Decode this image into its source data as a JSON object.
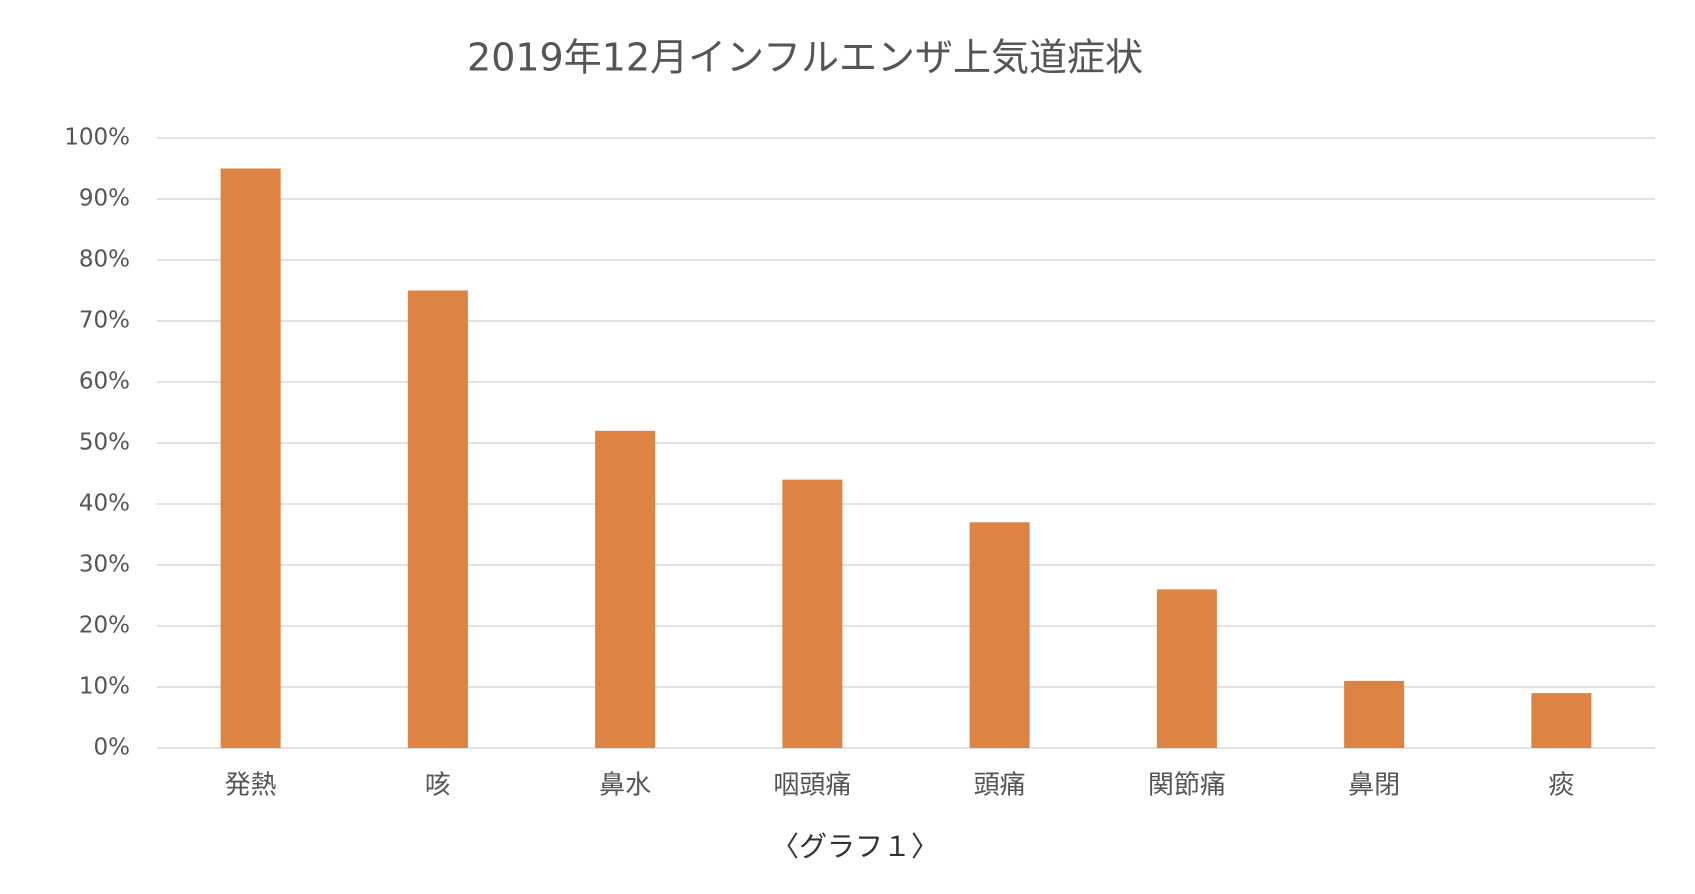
{
  "chart_data": {
    "type": "bar",
    "title": "2019年12月インフルエンザ上気道症状",
    "caption": "〈グラフ１〉",
    "categories": [
      "発熱",
      "咳",
      "鼻水",
      "咽頭痛",
      "頭痛",
      "関節痛",
      "鼻閉",
      "痰"
    ],
    "values": [
      95,
      75,
      52,
      44,
      37,
      26,
      11,
      9
    ],
    "color": "#dd8344",
    "ylim": [
      0,
      100
    ],
    "yticks": [
      {
        "value": 0,
        "label": "0%"
      },
      {
        "value": 10,
        "label": "10%"
      },
      {
        "value": 20,
        "label": "20%"
      },
      {
        "value": 30,
        "label": "30%"
      },
      {
        "value": 40,
        "label": "40%"
      },
      {
        "value": 50,
        "label": "50%"
      },
      {
        "value": 60,
        "label": "60%"
      },
      {
        "value": 70,
        "label": "70%"
      },
      {
        "value": 80,
        "label": "80%"
      },
      {
        "value": 90,
        "label": "90%"
      },
      {
        "value": 100,
        "label": "100%"
      }
    ],
    "grid": true
  }
}
